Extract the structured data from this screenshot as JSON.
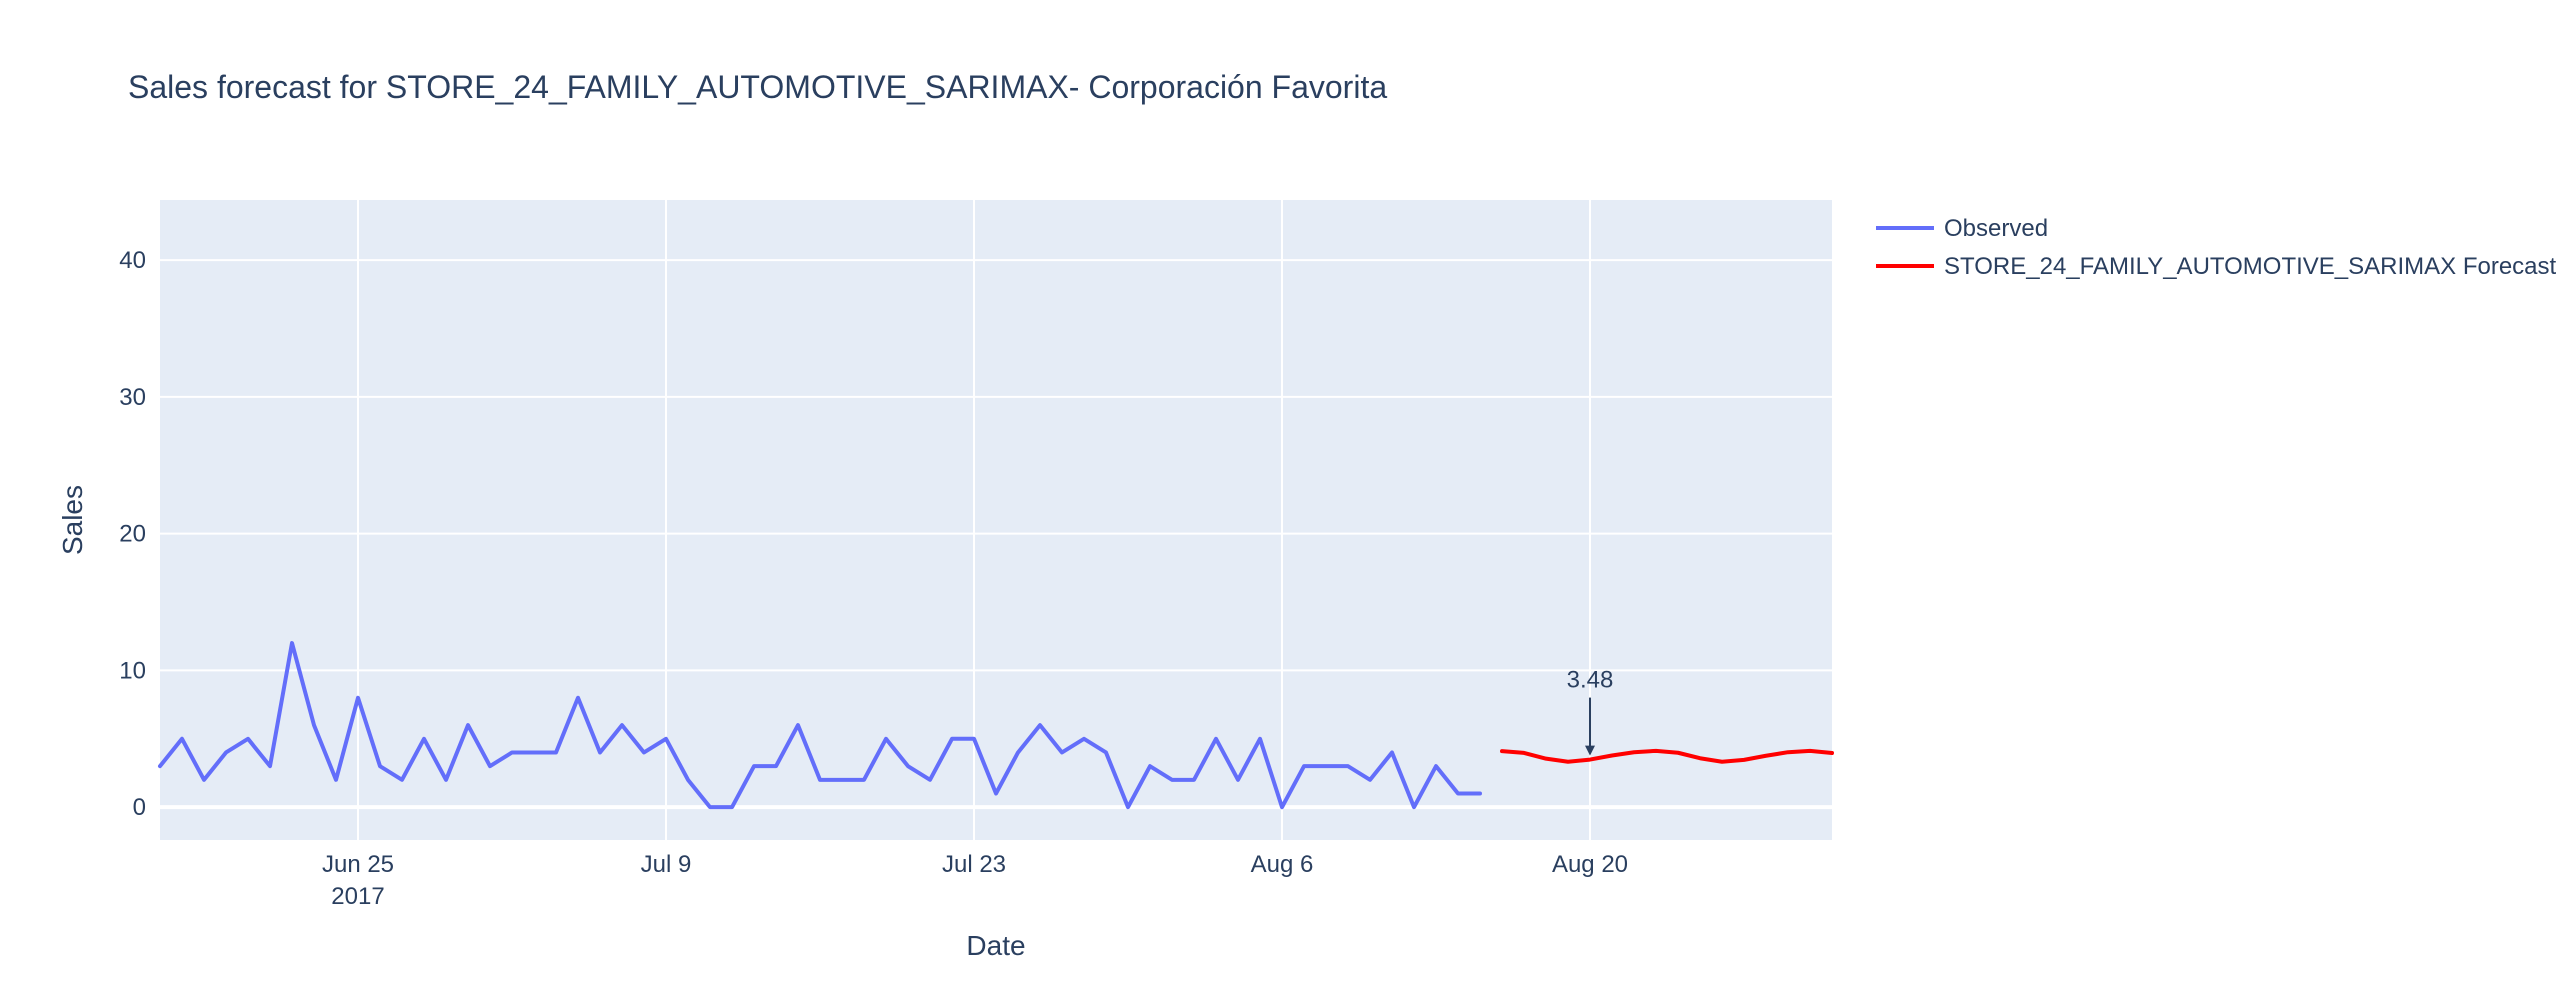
{
  "chart_data": {
    "type": "line",
    "title": "Sales forecast for STORE_24_FAMILY_AUTOMOTIVE_SARIMAX- Corporación Favorita",
    "xlabel": "Date",
    "ylabel": "Sales",
    "xlim": [
      "2017-06-16",
      "2017-08-31"
    ],
    "ylim": [
      -2.4,
      44.4
    ],
    "grid": true,
    "legend_position": "top-right",
    "x_ticks": [
      {
        "date": "2017-06-25",
        "label": "Jun 25",
        "sublabel": "2017"
      },
      {
        "date": "2017-07-09",
        "label": "Jul 9",
        "sublabel": ""
      },
      {
        "date": "2017-07-23",
        "label": "Jul 23",
        "sublabel": ""
      },
      {
        "date": "2017-08-06",
        "label": "Aug 6",
        "sublabel": ""
      },
      {
        "date": "2017-08-20",
        "label": "Aug 20",
        "sublabel": ""
      }
    ],
    "y_ticks": [
      0,
      10,
      20,
      30,
      40
    ],
    "series": [
      {
        "name": "Observed",
        "color": "#636efa",
        "x": [
          "2017-06-16",
          "2017-06-17",
          "2017-06-18",
          "2017-06-19",
          "2017-06-20",
          "2017-06-21",
          "2017-06-22",
          "2017-06-23",
          "2017-06-24",
          "2017-06-25",
          "2017-06-26",
          "2017-06-27",
          "2017-06-28",
          "2017-06-29",
          "2017-06-30",
          "2017-07-01",
          "2017-07-02",
          "2017-07-03",
          "2017-07-04",
          "2017-07-05",
          "2017-07-06",
          "2017-07-07",
          "2017-07-08",
          "2017-07-09",
          "2017-07-10",
          "2017-07-11",
          "2017-07-12",
          "2017-07-13",
          "2017-07-14",
          "2017-07-15",
          "2017-07-16",
          "2017-07-17",
          "2017-07-18",
          "2017-07-19",
          "2017-07-20",
          "2017-07-21",
          "2017-07-22",
          "2017-07-23",
          "2017-07-24",
          "2017-07-25",
          "2017-07-26",
          "2017-07-27",
          "2017-07-28",
          "2017-07-29",
          "2017-07-30",
          "2017-07-31",
          "2017-08-01",
          "2017-08-02",
          "2017-08-03",
          "2017-08-04",
          "2017-08-05",
          "2017-08-06",
          "2017-08-07",
          "2017-08-08",
          "2017-08-09",
          "2017-08-10",
          "2017-08-11",
          "2017-08-12",
          "2017-08-13",
          "2017-08-14",
          "2017-08-15"
        ],
        "values": [
          3,
          5,
          2,
          4,
          5,
          3,
          12,
          6,
          2,
          8,
          3,
          2,
          5,
          2,
          6,
          3,
          4,
          4,
          4,
          8,
          4,
          6,
          4,
          5,
          2,
          0,
          0,
          3,
          3,
          6,
          2,
          2,
          2,
          5,
          3,
          2,
          5,
          5,
          1,
          4,
          6,
          4,
          5,
          4,
          0,
          3,
          2,
          2,
          5,
          2,
          5,
          0,
          3,
          3,
          3,
          2,
          4,
          0,
          3,
          1,
          1
        ]
      },
      {
        "name": "STORE_24_FAMILY_AUTOMOTIVE_SARIMAX Forecast",
        "color": "#ff0000",
        "x": [
          "2017-08-16",
          "2017-08-17",
          "2017-08-18",
          "2017-08-19",
          "2017-08-20",
          "2017-08-21",
          "2017-08-22",
          "2017-08-23",
          "2017-08-24",
          "2017-08-25",
          "2017-08-26",
          "2017-08-27",
          "2017-08-28",
          "2017-08-29",
          "2017-08-30",
          "2017-08-31"
        ],
        "values": [
          4.1,
          3.97,
          3.55,
          3.32,
          3.48,
          3.78,
          4.02,
          4.12,
          3.98,
          3.58,
          3.32,
          3.46,
          3.76,
          4.02,
          4.12,
          3.96
        ]
      }
    ],
    "annotations": [
      {
        "x": "2017-08-20",
        "y": 3.48,
        "text": "3.48"
      }
    ]
  }
}
